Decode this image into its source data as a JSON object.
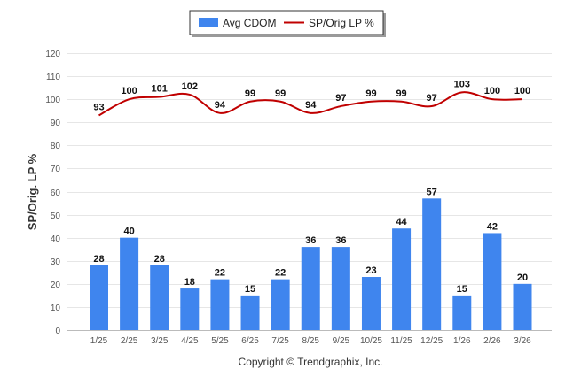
{
  "chart_data": {
    "type": "bar",
    "categories": [
      "1/25",
      "2/25",
      "3/25",
      "4/25",
      "5/25",
      "6/25",
      "7/25",
      "8/25",
      "9/25",
      "10/25",
      "11/25",
      "12/25",
      "1/26",
      "2/26",
      "3/26"
    ],
    "series": [
      {
        "name": "Avg CDOM",
        "type": "bar",
        "color": "#3f85ee",
        "values": [
          28,
          40,
          28,
          18,
          22,
          15,
          22,
          36,
          36,
          23,
          44,
          57,
          15,
          42,
          20
        ]
      },
      {
        "name": "SP/Orig LP %",
        "type": "line",
        "color": "#c00000",
        "values": [
          93,
          100,
          101,
          102,
          94,
          99,
          99,
          94,
          97,
          99,
          99,
          97,
          103,
          100,
          100
        ]
      }
    ],
    "ylabel": "SP/Orig. LP %",
    "xlabel": "",
    "ylim": [
      0,
      120
    ],
    "yticks": [
      0,
      10,
      20,
      30,
      40,
      50,
      60,
      70,
      80,
      90,
      100,
      110,
      120
    ],
    "grid": true,
    "legend_position": "top-center"
  },
  "footer": {
    "copyright": "Copyright © Trendgraphix, Inc."
  }
}
